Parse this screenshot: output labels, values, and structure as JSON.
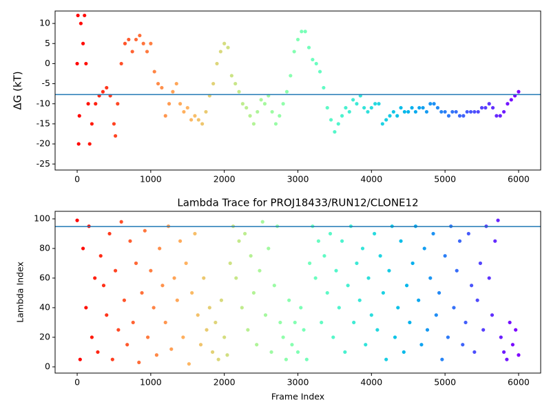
{
  "chart_data": [
    {
      "type": "scatter",
      "ylabel": "ΔG (kT)",
      "colormap": "rainbow_r",
      "x": [
        0,
        10,
        20,
        30,
        50,
        80,
        100,
        120,
        150,
        170,
        200,
        250,
        300,
        350,
        400,
        450,
        500,
        520,
        550,
        600,
        650,
        700,
        750,
        800,
        850,
        900,
        950,
        1000,
        1050,
        1100,
        1150,
        1200,
        1250,
        1300,
        1350,
        1400,
        1450,
        1500,
        1550,
        1600,
        1650,
        1700,
        1750,
        1800,
        1850,
        1900,
        1950,
        2000,
        2050,
        2100,
        2150,
        2200,
        2250,
        2300,
        2350,
        2400,
        2450,
        2500,
        2550,
        2600,
        2650,
        2700,
        2750,
        2800,
        2850,
        2900,
        2950,
        3000,
        3050,
        3100,
        3150,
        3200,
        3250,
        3300,
        3350,
        3400,
        3450,
        3500,
        3550,
        3600,
        3650,
        3700,
        3750,
        3800,
        3850,
        3900,
        3950,
        4000,
        4050,
        4100,
        4150,
        4200,
        4250,
        4300,
        4350,
        4400,
        4450,
        4500,
        4550,
        4600,
        4650,
        4700,
        4750,
        4800,
        4850,
        4900,
        4950,
        5000,
        5050,
        5100,
        5150,
        5200,
        5250,
        5300,
        5350,
        5400,
        5450,
        5500,
        5550,
        5600,
        5650,
        5700,
        5750,
        5800,
        5850,
        5900,
        5950,
        6000
      ],
      "y": [
        0,
        12,
        -20,
        -13,
        10,
        5,
        12,
        0,
        -10,
        -20,
        -15,
        -10,
        -8,
        -7,
        -6,
        -8,
        -15,
        -18,
        -10,
        0,
        5,
        6,
        3,
        6,
        7,
        5,
        3,
        5,
        -2,
        -5,
        -6,
        -13,
        -10,
        -7,
        -5,
        -10,
        -12,
        -11,
        -14,
        -13,
        -14,
        -15,
        -12,
        -8,
        -5,
        0,
        3,
        5,
        4,
        -3,
        -5,
        -7,
        -10,
        -11,
        -13,
        -15,
        -12,
        -9,
        -10,
        -8,
        -12,
        -15,
        -13,
        -10,
        -7,
        -3,
        3,
        6,
        8,
        8,
        4,
        1,
        0,
        -2,
        -6,
        -11,
        -14,
        -17,
        -15,
        -13,
        -11,
        -12,
        -9,
        -10,
        -8,
        -11,
        -12,
        -11,
        -10,
        -10,
        -15,
        -14,
        -13,
        -12,
        -13,
        -11,
        -12,
        -12,
        -11,
        -12,
        -11,
        -11,
        -12,
        -10,
        -10,
        -11,
        -12,
        -12,
        -13,
        -12,
        -12,
        -13,
        -13,
        -12,
        -12,
        -12,
        -12,
        -11,
        -11,
        -10,
        -11,
        -13,
        -13,
        -12,
        -10,
        -9,
        -8,
        -7
      ],
      "hline": {
        "y": -7.7,
        "color": "#1f77b4"
      },
      "xlim": [
        -300,
        6300
      ],
      "ylim": [
        -26.5,
        13.1
      ],
      "xticks": [
        0,
        1000,
        2000,
        3000,
        4000,
        5000,
        6000
      ],
      "yticks": [
        -25,
        -20,
        -15,
        -10,
        -5,
        0,
        5,
        10
      ]
    },
    {
      "type": "scatter",
      "title": "Lambda Trace for PROJ18433/RUN12/CLONE12",
      "xlabel": "Frame Index",
      "ylabel": "Lambda Index",
      "colormap": "rainbow_r",
      "x": [
        0,
        40,
        80,
        120,
        160,
        200,
        240,
        280,
        320,
        360,
        400,
        440,
        480,
        520,
        560,
        600,
        640,
        680,
        720,
        760,
        800,
        840,
        880,
        920,
        960,
        1000,
        1040,
        1080,
        1120,
        1160,
        1200,
        1240,
        1280,
        1320,
        1360,
        1400,
        1440,
        1480,
        1520,
        1560,
        1600,
        1640,
        1680,
        1720,
        1760,
        1800,
        1840,
        1880,
        1920,
        1960,
        2000,
        2040,
        2080,
        2120,
        2160,
        2200,
        2240,
        2280,
        2320,
        2360,
        2400,
        2440,
        2480,
        2520,
        2560,
        2600,
        2640,
        2680,
        2720,
        2760,
        2800,
        2840,
        2880,
        2920,
        2960,
        3000,
        3040,
        3080,
        3120,
        3160,
        3200,
        3240,
        3280,
        3320,
        3360,
        3400,
        3440,
        3480,
        3520,
        3560,
        3600,
        3640,
        3680,
        3720,
        3760,
        3800,
        3840,
        3880,
        3920,
        3960,
        4000,
        4040,
        4080,
        4120,
        4160,
        4200,
        4240,
        4280,
        4320,
        4360,
        4400,
        4440,
        4480,
        4520,
        4560,
        4600,
        4640,
        4680,
        4720,
        4760,
        4800,
        4840,
        4880,
        4920,
        4960,
        5000,
        5040,
        5080,
        5120,
        5160,
        5200,
        5240,
        5280,
        5320,
        5360,
        5400,
        5440,
        5480,
        5520,
        5560,
        5600,
        5640,
        5680,
        5720,
        5760,
        5800,
        5840,
        5880,
        5920,
        5960,
        6000
      ],
      "y": [
        99,
        5,
        80,
        40,
        95,
        20,
        60,
        10,
        75,
        55,
        35,
        90,
        5,
        65,
        25,
        98,
        45,
        15,
        85,
        30,
        70,
        3,
        50,
        92,
        20,
        65,
        40,
        8,
        80,
        55,
        30,
        95,
        12,
        60,
        45,
        85,
        20,
        70,
        2,
        50,
        90,
        35,
        15,
        60,
        25,
        40,
        10,
        30,
        5,
        45,
        20,
        8,
        70,
        95,
        60,
        85,
        40,
        90,
        25,
        75,
        50,
        15,
        65,
        98,
        35,
        80,
        10,
        55,
        95,
        30,
        20,
        5,
        45,
        15,
        30,
        10,
        40,
        25,
        5,
        70,
        95,
        60,
        85,
        30,
        75,
        50,
        90,
        20,
        65,
        40,
        85,
        10,
        55,
        95,
        30,
        70,
        45,
        80,
        15,
        60,
        35,
        90,
        25,
        75,
        50,
        5,
        65,
        95,
        20,
        40,
        85,
        10,
        55,
        30,
        70,
        95,
        45,
        15,
        80,
        25,
        60,
        90,
        35,
        50,
        5,
        75,
        20,
        95,
        40,
        65,
        85,
        15,
        30,
        90,
        55,
        10,
        45,
        70,
        25,
        95,
        60,
        35,
        85,
        99,
        20,
        10,
        5,
        30,
        15,
        25,
        8
      ],
      "hline": {
        "y": 94.8,
        "color": "#1f77b4"
      },
      "xlim": [
        -300,
        6300
      ],
      "ylim": [
        -4.2,
        105.1
      ],
      "xticks": [
        0,
        1000,
        2000,
        3000,
        4000,
        5000,
        6000
      ],
      "yticks": [
        0,
        20,
        40,
        60,
        80,
        100
      ]
    }
  ]
}
